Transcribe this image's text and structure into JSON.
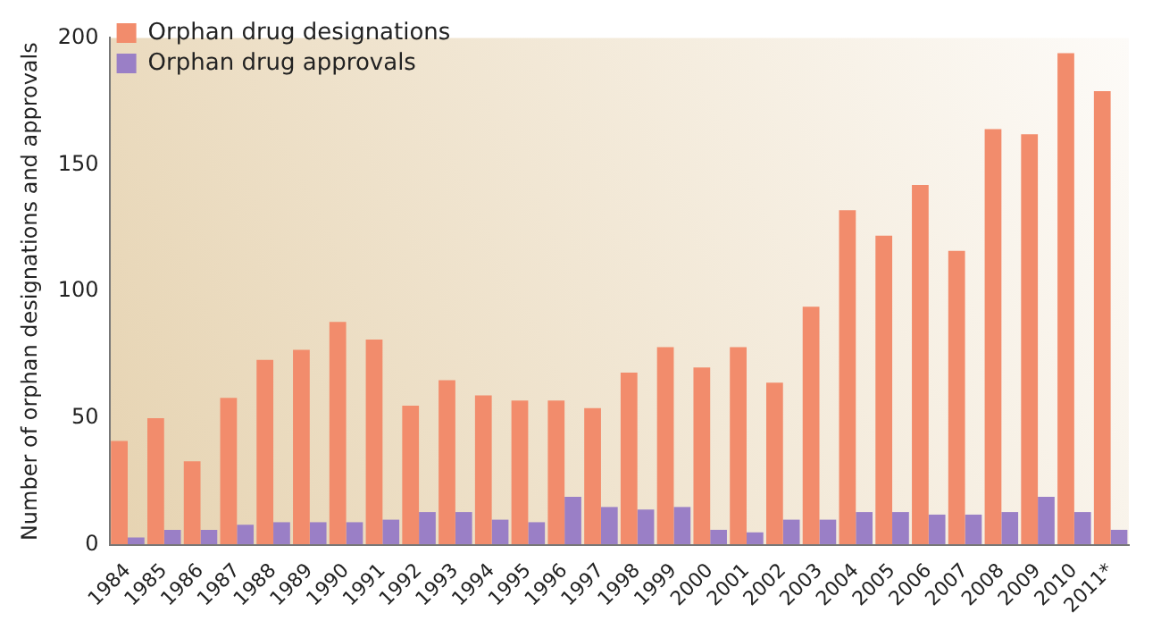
{
  "chart_data": {
    "type": "bar",
    "ylabel": "Number of orphan designations and approvals",
    "categories": [
      "1984",
      "1985",
      "1986",
      "1987",
      "1988",
      "1989",
      "1990",
      "1991",
      "1992",
      "1993",
      "1994",
      "1995",
      "1996",
      "1997",
      "1998",
      "1999",
      "2000",
      "2001",
      "2002",
      "2003",
      "2004",
      "2005",
      "2006",
      "2007",
      "2008",
      "2009",
      "2010",
      "2011*"
    ],
    "series": [
      {
        "name": "Orphan drug designations",
        "color": "#f28c6c",
        "values": [
          41,
          50,
          33,
          58,
          73,
          77,
          88,
          81,
          55,
          65,
          59,
          57,
          57,
          54,
          68,
          78,
          70,
          78,
          64,
          94,
          132,
          122,
          142,
          116,
          164,
          162,
          194,
          179
        ]
      },
      {
        "name": "Orphan drug approvals",
        "color": "#9a7fc6",
        "values": [
          3,
          6,
          6,
          8,
          9,
          9,
          9,
          10,
          13,
          13,
          10,
          9,
          19,
          15,
          14,
          15,
          6,
          5,
          10,
          10,
          13,
          13,
          12,
          12,
          13,
          19,
          13,
          6
        ]
      }
    ],
    "ylim": [
      0,
      200
    ],
    "yticks": [
      0,
      50,
      100,
      150,
      200
    ],
    "grid": false,
    "legend": "top left"
  }
}
